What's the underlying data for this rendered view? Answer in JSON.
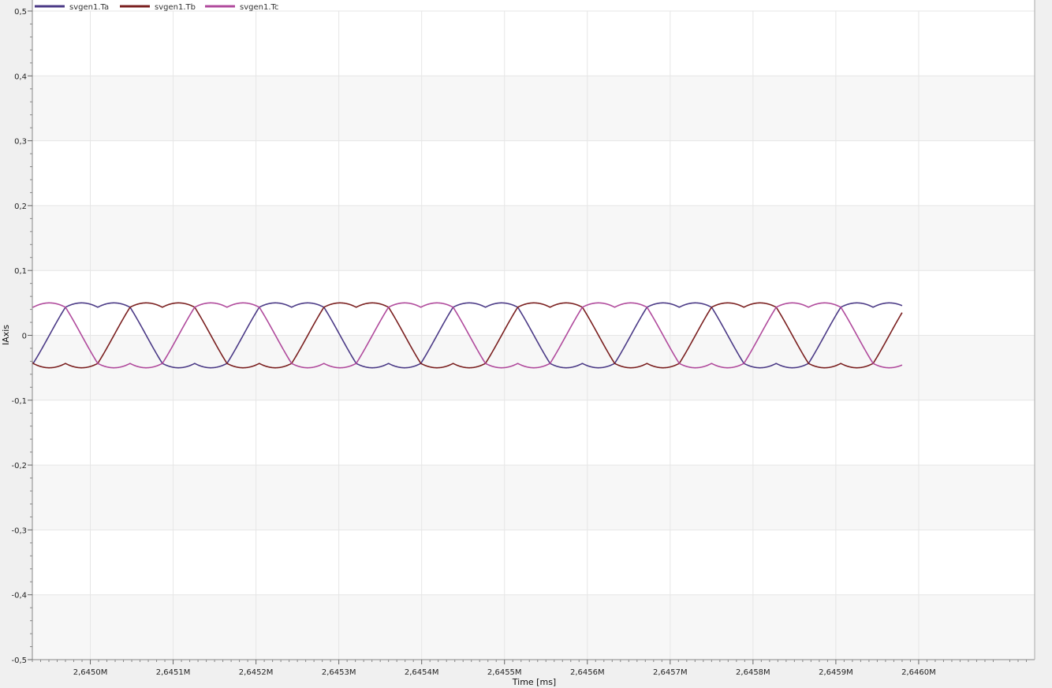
{
  "chart_data": {
    "type": "line",
    "xlabel": "Time [ms]",
    "ylabel": "IAxis",
    "xlim": [
      2644.93,
      2646.14
    ],
    "ylim": [
      -0.5,
      0.5
    ],
    "x_ticks": [
      2645.0,
      2645.1,
      2645.2,
      2645.3,
      2645.4,
      2645.5,
      2645.6,
      2645.7,
      2645.8,
      2645.9,
      2646.0
    ],
    "x_tick_labels": [
      "2,6450M",
      "2,6451M",
      "2,6452M",
      "2,6453M",
      "2,6454M",
      "2,6455M",
      "2,6456M",
      "2,6457M",
      "2,6458M",
      "2,6459M",
      "2,6460M"
    ],
    "y_ticks": [
      0.5,
      0.4,
      0.3,
      0.2,
      0.1,
      0,
      -0.1,
      -0.2,
      -0.3,
      -0.4,
      -0.5
    ],
    "y_tick_labels": [
      "0,5",
      "0,4",
      "0,3",
      "0,2",
      "0,1",
      "0",
      "-0,1",
      "-0,2",
      "-0,3",
      "-0,4",
      "-0,5"
    ],
    "grid": true,
    "legend_position": "top-left",
    "x_start": 2644.93,
    "x_end": 2645.98,
    "period_ms": 0.234,
    "amplitude": 0.05,
    "series": [
      {
        "name": "svgen1.Ta",
        "color": "#4b3a86",
        "phase_deg": 0
      },
      {
        "name": "svgen1.Tb",
        "color": "#7a1f1f",
        "phase_deg": -120
      },
      {
        "name": "svgen1.Tc",
        "color": "#b04a9c",
        "phase_deg": 120
      }
    ]
  }
}
